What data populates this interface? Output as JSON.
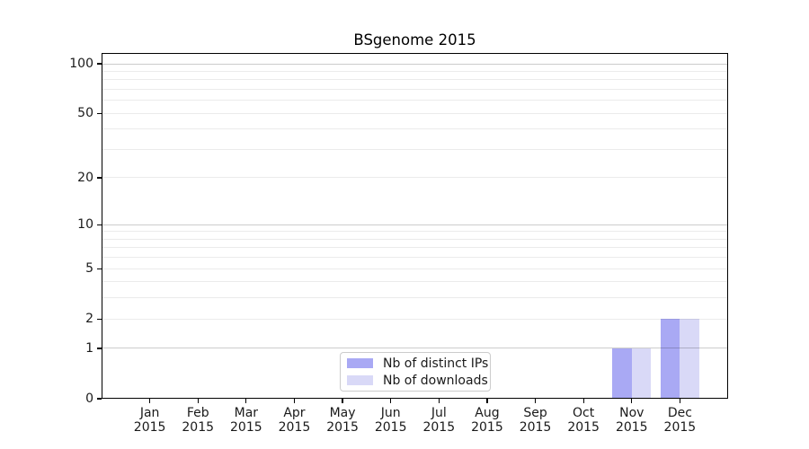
{
  "chart_data": {
    "type": "bar",
    "title": "BSgenome 2015",
    "x": {
      "months": [
        "Jan",
        "Feb",
        "Mar",
        "Apr",
        "May",
        "Jun",
        "Jul",
        "Aug",
        "Sep",
        "Oct",
        "Nov",
        "Dec"
      ],
      "year": "2015"
    },
    "series": [
      {
        "name": "Nb of distinct IPs",
        "color": "#a9a9f4",
        "values": [
          0,
          0,
          0,
          0,
          0,
          0,
          0,
          0,
          0,
          0,
          1,
          2
        ]
      },
      {
        "name": "Nb of downloads",
        "color": "#d9d9f7",
        "values": [
          0,
          0,
          0,
          0,
          0,
          0,
          0,
          0,
          0,
          0,
          1,
          2
        ]
      }
    ],
    "y_axis": {
      "scale": "log1p",
      "max": 100,
      "tick_values": [
        0,
        1,
        2,
        5,
        10,
        20,
        50,
        100
      ],
      "major_gridlines": [
        1,
        10,
        100
      ],
      "minor_gridlines": [
        2,
        3,
        4,
        5,
        6,
        7,
        8,
        9,
        20,
        30,
        40,
        50,
        60,
        70,
        80,
        90
      ]
    },
    "legend": {
      "position": "bottom-center",
      "entries": [
        "Nb of distinct IPs",
        "Nb of downloads"
      ]
    },
    "colors": {
      "grid_major": "rgba(0,0,0,0.20)",
      "grid_minor": "rgba(0,0,0,0.08)",
      "frame": "#000000",
      "text": "#1a1a1a"
    },
    "layout": {
      "grid_above_bars": true,
      "legend_border": "#cccccc"
    }
  }
}
